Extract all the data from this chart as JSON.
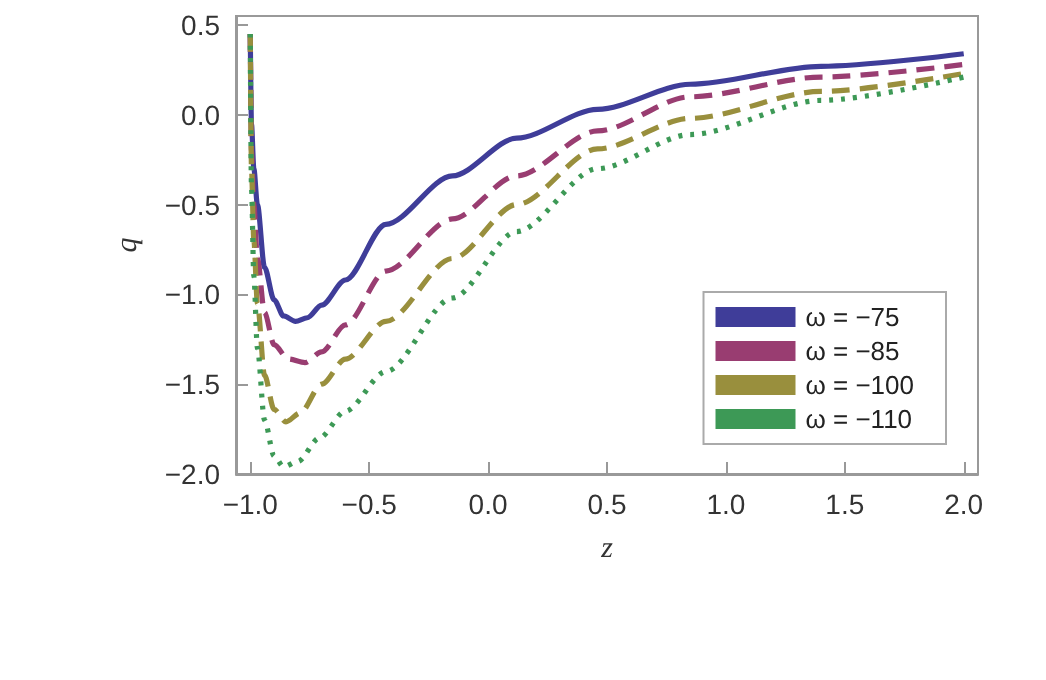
{
  "chart_data": {
    "type": "line",
    "xlabel": "z",
    "ylabel": "q",
    "xlim": [
      -1.06,
      2.06
    ],
    "ylim": [
      -2.0,
      0.55
    ],
    "xticks": [
      {
        "value": -1,
        "label": "−1.0"
      },
      {
        "value": -0.5,
        "label": "−0.5"
      },
      {
        "value": 0,
        "label": "0.0"
      },
      {
        "value": 0.5,
        "label": "0.5"
      },
      {
        "value": 1,
        "label": "1.0"
      },
      {
        "value": 1.5,
        "label": "1.5"
      },
      {
        "value": 2,
        "label": "2.0"
      }
    ],
    "yticks": [
      {
        "value": -2,
        "label": "−2.0"
      },
      {
        "value": -1.5,
        "label": "−1.5"
      },
      {
        "value": -1,
        "label": "−1.0"
      },
      {
        "value": -0.5,
        "label": "−0.5"
      },
      {
        "value": 0,
        "label": "0.0"
      },
      {
        "value": 0.5,
        "label": "0.5"
      }
    ],
    "grid": false,
    "legend": "bottom right",
    "marker": "none",
    "series": [
      {
        "name": "ω = −75",
        "color": "#3f3d99",
        "line_style": "solid",
        "x": [
          -1.0,
          -0.995,
          -0.985,
          -0.97,
          -0.94,
          -0.9,
          -0.86,
          -0.81,
          -0.76,
          -0.7,
          -0.6,
          -0.43,
          -0.15,
          0.12,
          0.46,
          0.85,
          1.4,
          2.0
        ],
        "values": [
          0.45,
          -0.05,
          -0.3,
          -0.5,
          -0.85,
          -1.03,
          -1.12,
          -1.15,
          -1.13,
          -1.06,
          -0.92,
          -0.61,
          -0.34,
          -0.13,
          0.03,
          0.17,
          0.27,
          0.34
        ]
      },
      {
        "name": "ω = −85",
        "color": "#993d71",
        "line_style": "dashed",
        "x": [
          -1.0,
          -0.995,
          -0.985,
          -0.97,
          -0.94,
          -0.9,
          -0.84,
          -0.77,
          -0.7,
          -0.6,
          -0.43,
          -0.15,
          0.12,
          0.46,
          0.85,
          1.4,
          2.0
        ],
        "values": [
          0.45,
          -0.2,
          -0.5,
          -0.8,
          -1.1,
          -1.28,
          -1.36,
          -1.38,
          -1.32,
          -1.17,
          -0.87,
          -0.58,
          -0.34,
          -0.09,
          0.1,
          0.21,
          0.28
        ]
      },
      {
        "name": "ω = −100",
        "color": "#998f3d",
        "line_style": "dashed",
        "x": [
          -1.0,
          -0.995,
          -0.985,
          -0.97,
          -0.94,
          -0.9,
          -0.85,
          -0.79,
          -0.7,
          -0.6,
          -0.43,
          -0.15,
          0.12,
          0.46,
          0.85,
          1.4,
          2.0
        ],
        "values": [
          0.45,
          -0.3,
          -0.7,
          -1.05,
          -1.45,
          -1.64,
          -1.71,
          -1.66,
          -1.5,
          -1.36,
          -1.15,
          -0.8,
          -0.5,
          -0.19,
          -0.02,
          0.13,
          0.23
        ]
      },
      {
        "name": "ω = −110",
        "color": "#3d9956",
        "line_style": "dotted",
        "x": [
          -1.0,
          -0.995,
          -0.985,
          -0.97,
          -0.94,
          -0.9,
          -0.86,
          -0.8,
          -0.71,
          -0.6,
          -0.43,
          -0.15,
          0.12,
          0.46,
          0.85,
          1.4,
          2.0
        ],
        "values": [
          0.45,
          -0.4,
          -0.9,
          -1.3,
          -1.7,
          -1.9,
          -1.96,
          -1.93,
          -1.8,
          -1.65,
          -1.43,
          -1.02,
          -0.65,
          -0.3,
          -0.11,
          0.08,
          0.21
        ]
      }
    ]
  }
}
